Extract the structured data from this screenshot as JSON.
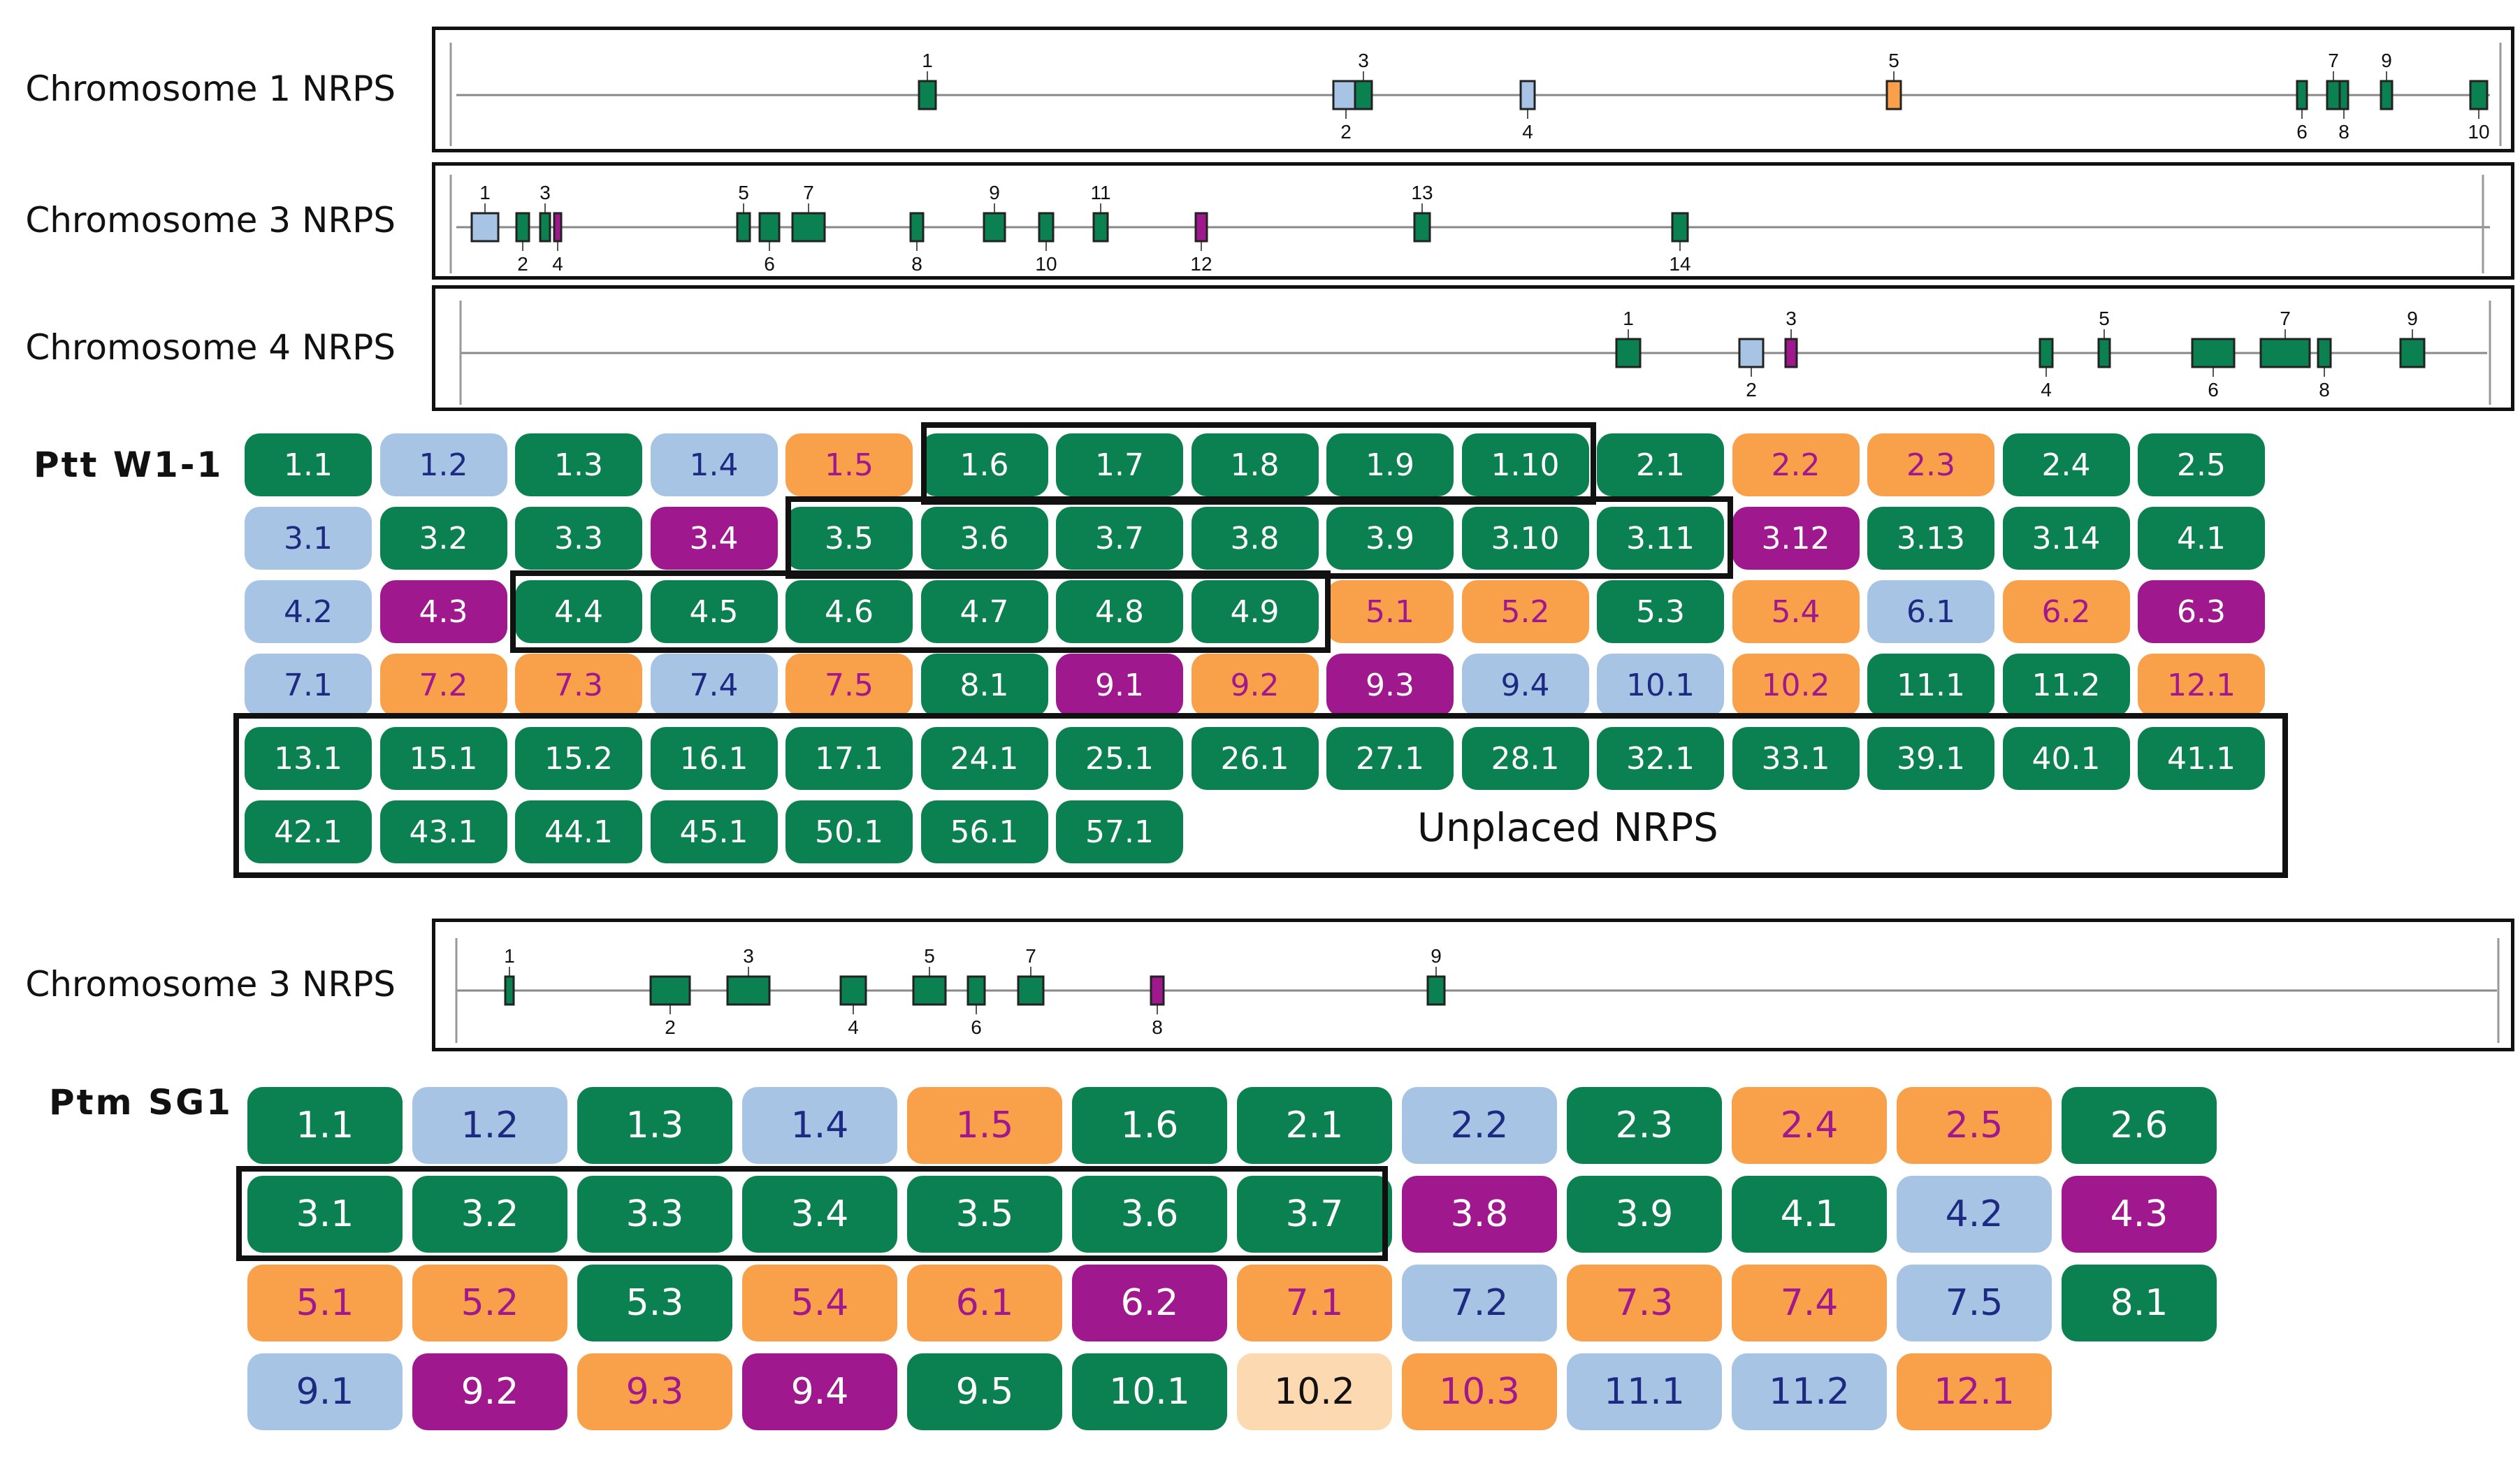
{
  "palette": {
    "green": "#0b8050",
    "blue": "#a7c4e5",
    "orange": "#f9a14a",
    "purple": "#a0188e",
    "peach": "#fdd9b2",
    "text_on_green": "#ffffff",
    "text_on_blue": "#1d2a82",
    "text_on_orange": "#a0188e",
    "text_on_purple": "#ffffff",
    "text_on_peach": "#111111",
    "outline": "#111111"
  },
  "tracks": [
    {
      "label": "Chromosome 1 NRPS",
      "genes": [
        {
          "n": "1",
          "color": "green",
          "label_pos": "top"
        },
        {
          "n": "2",
          "color": "blue",
          "label_pos": "bottom"
        },
        {
          "n": "3",
          "color": "green",
          "label_pos": "top"
        },
        {
          "n": "4",
          "color": "blue",
          "label_pos": "bottom"
        },
        {
          "n": "5",
          "color": "orange",
          "label_pos": "top"
        },
        {
          "n": "6",
          "color": "green",
          "label_pos": "bottom"
        },
        {
          "n": "7",
          "color": "green",
          "label_pos": "top"
        },
        {
          "n": "8",
          "color": "green",
          "label_pos": "bottom"
        },
        {
          "n": "9",
          "color": "green",
          "label_pos": "top"
        },
        {
          "n": "10",
          "color": "green",
          "label_pos": "bottom"
        }
      ]
    },
    {
      "label": "Chromosome 3 NRPS",
      "genes": [
        {
          "n": "1",
          "color": "blue",
          "label_pos": "top"
        },
        {
          "n": "2",
          "color": "green",
          "label_pos": "bottom"
        },
        {
          "n": "3",
          "color": "green",
          "label_pos": "top"
        },
        {
          "n": "4",
          "color": "purple",
          "label_pos": "bottom"
        },
        {
          "n": "5",
          "color": "green",
          "label_pos": "top"
        },
        {
          "n": "6",
          "color": "green",
          "label_pos": "bottom"
        },
        {
          "n": "7",
          "color": "green",
          "label_pos": "top"
        },
        {
          "n": "8",
          "color": "green",
          "label_pos": "bottom"
        },
        {
          "n": "9",
          "color": "green",
          "label_pos": "top"
        },
        {
          "n": "10",
          "color": "green",
          "label_pos": "bottom"
        },
        {
          "n": "11",
          "color": "green",
          "label_pos": "top"
        },
        {
          "n": "12",
          "color": "purple",
          "label_pos": "bottom"
        },
        {
          "n": "13",
          "color": "green",
          "label_pos": "top"
        },
        {
          "n": "14",
          "color": "green",
          "label_pos": "bottom"
        }
      ]
    },
    {
      "label": "Chromosome 4 NRPS",
      "genes": [
        {
          "n": "1",
          "color": "green",
          "label_pos": "top"
        },
        {
          "n": "2",
          "color": "blue",
          "label_pos": "bottom"
        },
        {
          "n": "3",
          "color": "purple",
          "label_pos": "top"
        },
        {
          "n": "4",
          "color": "green",
          "label_pos": "bottom"
        },
        {
          "n": "5",
          "color": "green",
          "label_pos": "top"
        },
        {
          "n": "6",
          "color": "green",
          "label_pos": "bottom"
        },
        {
          "n": "7",
          "color": "green",
          "label_pos": "top"
        },
        {
          "n": "8",
          "color": "green",
          "label_pos": "bottom"
        },
        {
          "n": "9",
          "color": "green",
          "label_pos": "top"
        }
      ]
    },
    {
      "label": "Chromosome 3 NRPS",
      "genes": [
        {
          "n": "1",
          "color": "green",
          "label_pos": "top"
        },
        {
          "n": "2",
          "color": "green",
          "label_pos": "bottom"
        },
        {
          "n": "3",
          "color": "green",
          "label_pos": "top"
        },
        {
          "n": "4",
          "color": "green",
          "label_pos": "bottom"
        },
        {
          "n": "5",
          "color": "green",
          "label_pos": "top"
        },
        {
          "n": "6",
          "color": "green",
          "label_pos": "bottom"
        },
        {
          "n": "7",
          "color": "green",
          "label_pos": "top"
        },
        {
          "n": "8",
          "color": "purple",
          "label_pos": "bottom"
        },
        {
          "n": "9",
          "color": "green",
          "label_pos": "top"
        }
      ]
    }
  ],
  "panels": [
    {
      "title": "Ptt W1-1",
      "rows": [
        [
          [
            "1.1",
            "green"
          ],
          [
            "1.2",
            "blue"
          ],
          [
            "1.3",
            "green"
          ],
          [
            "1.4",
            "blue"
          ],
          [
            "1.5",
            "orange"
          ],
          [
            "1.6",
            "green"
          ],
          [
            "1.7",
            "green"
          ],
          [
            "1.8",
            "green"
          ],
          [
            "1.9",
            "green"
          ],
          [
            "1.10",
            "green"
          ],
          [
            "2.1",
            "green"
          ],
          [
            "2.2",
            "orange"
          ],
          [
            "2.3",
            "orange"
          ],
          [
            "2.4",
            "green"
          ],
          [
            "2.5",
            "green"
          ]
        ],
        [
          [
            "3.1",
            "blue"
          ],
          [
            "3.2",
            "green"
          ],
          [
            "3.3",
            "green"
          ],
          [
            "3.4",
            "purple"
          ],
          [
            "3.5",
            "green"
          ],
          [
            "3.6",
            "green"
          ],
          [
            "3.7",
            "green"
          ],
          [
            "3.8",
            "green"
          ],
          [
            "3.9",
            "green"
          ],
          [
            "3.10",
            "green"
          ],
          [
            "3.11",
            "green"
          ],
          [
            "3.12",
            "purple"
          ],
          [
            "3.13",
            "green"
          ],
          [
            "3.14",
            "green"
          ],
          [
            "4.1",
            "green"
          ]
        ],
        [
          [
            "4.2",
            "blue"
          ],
          [
            "4.3",
            "purple"
          ],
          [
            "4.4",
            "green"
          ],
          [
            "4.5",
            "green"
          ],
          [
            "4.6",
            "green"
          ],
          [
            "4.7",
            "green"
          ],
          [
            "4.8",
            "green"
          ],
          [
            "4.9",
            "green"
          ],
          [
            "5.1",
            "orange"
          ],
          [
            "5.2",
            "orange"
          ],
          [
            "5.3",
            "green"
          ],
          [
            "5.4",
            "orange"
          ],
          [
            "6.1",
            "blue"
          ],
          [
            "6.2",
            "orange"
          ],
          [
            "6.3",
            "purple"
          ]
        ],
        [
          [
            "7.1",
            "blue"
          ],
          [
            "7.2",
            "orange"
          ],
          [
            "7.3",
            "orange"
          ],
          [
            "7.4",
            "blue"
          ],
          [
            "7.5",
            "orange"
          ],
          [
            "8.1",
            "green"
          ],
          [
            "9.1",
            "purple"
          ],
          [
            "9.2",
            "orange"
          ],
          [
            "9.3",
            "purple"
          ],
          [
            "9.4",
            "blue"
          ],
          [
            "10.1",
            "blue"
          ],
          [
            "10.2",
            "orange"
          ],
          [
            "11.1",
            "green"
          ],
          [
            "11.2",
            "green"
          ],
          [
            "12.1",
            "orange"
          ]
        ],
        [
          [
            "13.1",
            "green"
          ],
          [
            "15.1",
            "green"
          ],
          [
            "15.2",
            "green"
          ],
          [
            "16.1",
            "green"
          ],
          [
            "17.1",
            "green"
          ],
          [
            "24.1",
            "green"
          ],
          [
            "25.1",
            "green"
          ],
          [
            "26.1",
            "green"
          ],
          [
            "27.1",
            "green"
          ],
          [
            "28.1",
            "green"
          ],
          [
            "32.1",
            "green"
          ],
          [
            "33.1",
            "green"
          ],
          [
            "39.1",
            "green"
          ],
          [
            "40.1",
            "green"
          ],
          [
            "41.1",
            "green"
          ]
        ],
        [
          [
            "42.1",
            "green"
          ],
          [
            "43.1",
            "green"
          ],
          [
            "44.1",
            "green"
          ],
          [
            "45.1",
            "green"
          ],
          [
            "50.1",
            "green"
          ],
          [
            "56.1",
            "green"
          ],
          [
            "57.1",
            "green"
          ]
        ]
      ],
      "note": "Unplaced NRPS"
    },
    {
      "title": "Ptm SG1",
      "rows": [
        [
          [
            "1.1",
            "green"
          ],
          [
            "1.2",
            "blue"
          ],
          [
            "1.3",
            "green"
          ],
          [
            "1.4",
            "blue"
          ],
          [
            "1.5",
            "orange"
          ],
          [
            "1.6",
            "green"
          ],
          [
            "2.1",
            "green"
          ],
          [
            "2.2",
            "blue"
          ],
          [
            "2.3",
            "green"
          ],
          [
            "2.4",
            "orange"
          ],
          [
            "2.5",
            "orange"
          ],
          [
            "2.6",
            "green"
          ]
        ],
        [
          [
            "3.1",
            "green"
          ],
          [
            "3.2",
            "green"
          ],
          [
            "3.3",
            "green"
          ],
          [
            "3.4",
            "green"
          ],
          [
            "3.5",
            "green"
          ],
          [
            "3.6",
            "green"
          ],
          [
            "3.7",
            "green"
          ],
          [
            "3.8",
            "purple"
          ],
          [
            "3.9",
            "green"
          ],
          [
            "4.1",
            "green"
          ],
          [
            "4.2",
            "blue"
          ],
          [
            "4.3",
            "purple"
          ]
        ],
        [
          [
            "5.1",
            "orange"
          ],
          [
            "5.2",
            "orange"
          ],
          [
            "5.3",
            "green"
          ],
          [
            "5.4",
            "orange"
          ],
          [
            "6.1",
            "orange"
          ],
          [
            "6.2",
            "purple"
          ],
          [
            "7.1",
            "orange"
          ],
          [
            "7.2",
            "blue"
          ],
          [
            "7.3",
            "orange"
          ],
          [
            "7.4",
            "orange"
          ],
          [
            "7.5",
            "blue"
          ],
          [
            "8.1",
            "green"
          ]
        ],
        [
          [
            "9.1",
            "blue"
          ],
          [
            "9.2",
            "purple"
          ],
          [
            "9.3",
            "orange"
          ],
          [
            "9.4",
            "purple"
          ],
          [
            "9.5",
            "green"
          ],
          [
            "10.1",
            "green"
          ],
          [
            "10.2",
            "peach"
          ],
          [
            "10.3",
            "orange"
          ],
          [
            "11.1",
            "blue"
          ],
          [
            "11.2",
            "blue"
          ],
          [
            "12.1",
            "orange"
          ]
        ]
      ]
    }
  ]
}
